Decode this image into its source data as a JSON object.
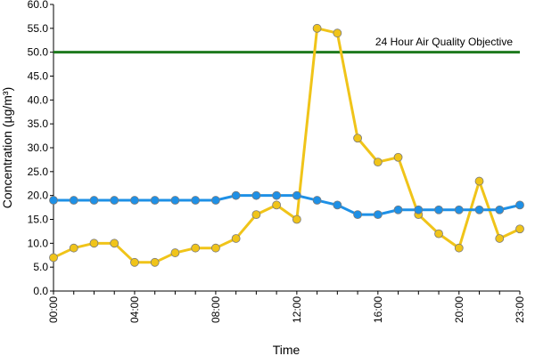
{
  "chart_data": {
    "type": "line",
    "title": "",
    "xlabel": "Time",
    "ylabel": "Concentration (µg/m³)",
    "ylim": [
      0,
      60
    ],
    "y_ticks": [
      "0.0",
      "5.0",
      "10.0",
      "15.0",
      "20.0",
      "25.0",
      "30.0",
      "35.0",
      "40.0",
      "45.0",
      "50.0",
      "55.0",
      "60.0"
    ],
    "x_tick_labels": [
      "00:00",
      "04:00",
      "08:00",
      "12:00",
      "16:00",
      "20:00",
      "23:00"
    ],
    "x": [
      "00:00",
      "01:00",
      "02:00",
      "03:00",
      "04:00",
      "05:00",
      "06:00",
      "07:00",
      "08:00",
      "09:00",
      "10:00",
      "11:00",
      "12:00",
      "13:00",
      "14:00",
      "15:00",
      "16:00",
      "17:00",
      "18:00",
      "19:00",
      "20:00",
      "21:00",
      "22:00",
      "23:00"
    ],
    "series": [
      {
        "color": "#F0C419",
        "values": [
          7,
          9,
          10,
          10,
          6,
          6,
          8,
          9,
          9,
          11,
          16,
          18,
          15,
          55,
          54,
          32,
          27,
          28,
          16,
          12,
          9,
          23,
          11,
          13
        ]
      },
      {
        "color": "#1E90E6",
        "values": [
          19,
          19,
          19,
          19,
          19,
          19,
          19,
          19,
          19,
          20,
          20,
          20,
          20,
          19,
          18,
          16,
          16,
          17,
          17,
          17,
          17,
          17,
          17,
          18
        ]
      }
    ],
    "reference_line": {
      "value": 50,
      "label": "24 Hour Air Quality Objective",
      "color": "#1E7A1E"
    },
    "grid": false,
    "legend": "none"
  }
}
